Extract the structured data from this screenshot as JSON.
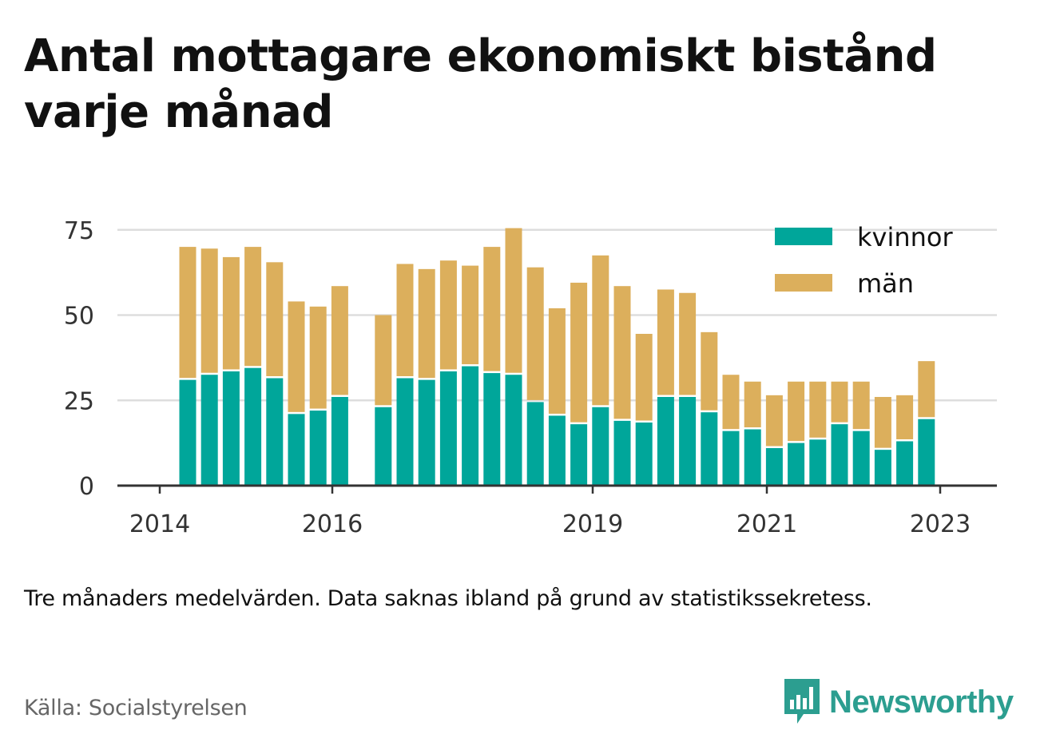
{
  "title": "Antal mottagare ekonomiskt bistånd varje månad",
  "note": "Tre månaders medelvärden. Data saknas ibland på grund av statistikssekretess.",
  "source": "Källa: Socialstyrelsen",
  "brand": {
    "name": "Newsworthy",
    "icon": "bar-chart-speech-bubble-icon"
  },
  "colors": {
    "kvinnor": "#00a69a",
    "man": "#dcaf5c",
    "grid": "#dddddd",
    "axis": "#333333"
  },
  "chart_data": {
    "type": "bar",
    "stacked": true,
    "x_ticks": [
      "2014",
      "2016",
      "2019",
      "2021",
      "2023"
    ],
    "y_ticks": [
      "0",
      "25",
      "50",
      "75"
    ],
    "ylim": [
      0,
      76
    ],
    "legend_position": "top-right",
    "grid": true,
    "series": [
      {
        "name": "kvinnor",
        "values": [
          31,
          32.5,
          33.5,
          34.5,
          31.5,
          21,
          22,
          26,
          null,
          23,
          31.5,
          31,
          33.5,
          35,
          33,
          32.5,
          24.5,
          20.5,
          18,
          23,
          19,
          18.5,
          26,
          26,
          21.5,
          16,
          16.5,
          11,
          12.5,
          13.5,
          18,
          16,
          10.5,
          13,
          19.5
        ]
      },
      {
        "name": "män",
        "values": [
          39,
          37,
          33.5,
          35.5,
          34,
          33,
          30.5,
          32.5,
          null,
          27,
          33.5,
          32.5,
          32.5,
          29.5,
          37,
          43,
          39.5,
          31.5,
          41.5,
          44.5,
          39.5,
          26,
          31.5,
          30.5,
          23.5,
          16.5,
          14,
          15.5,
          18,
          17,
          12.5,
          14.5,
          15.5,
          13.5,
          17
        ]
      }
    ]
  }
}
